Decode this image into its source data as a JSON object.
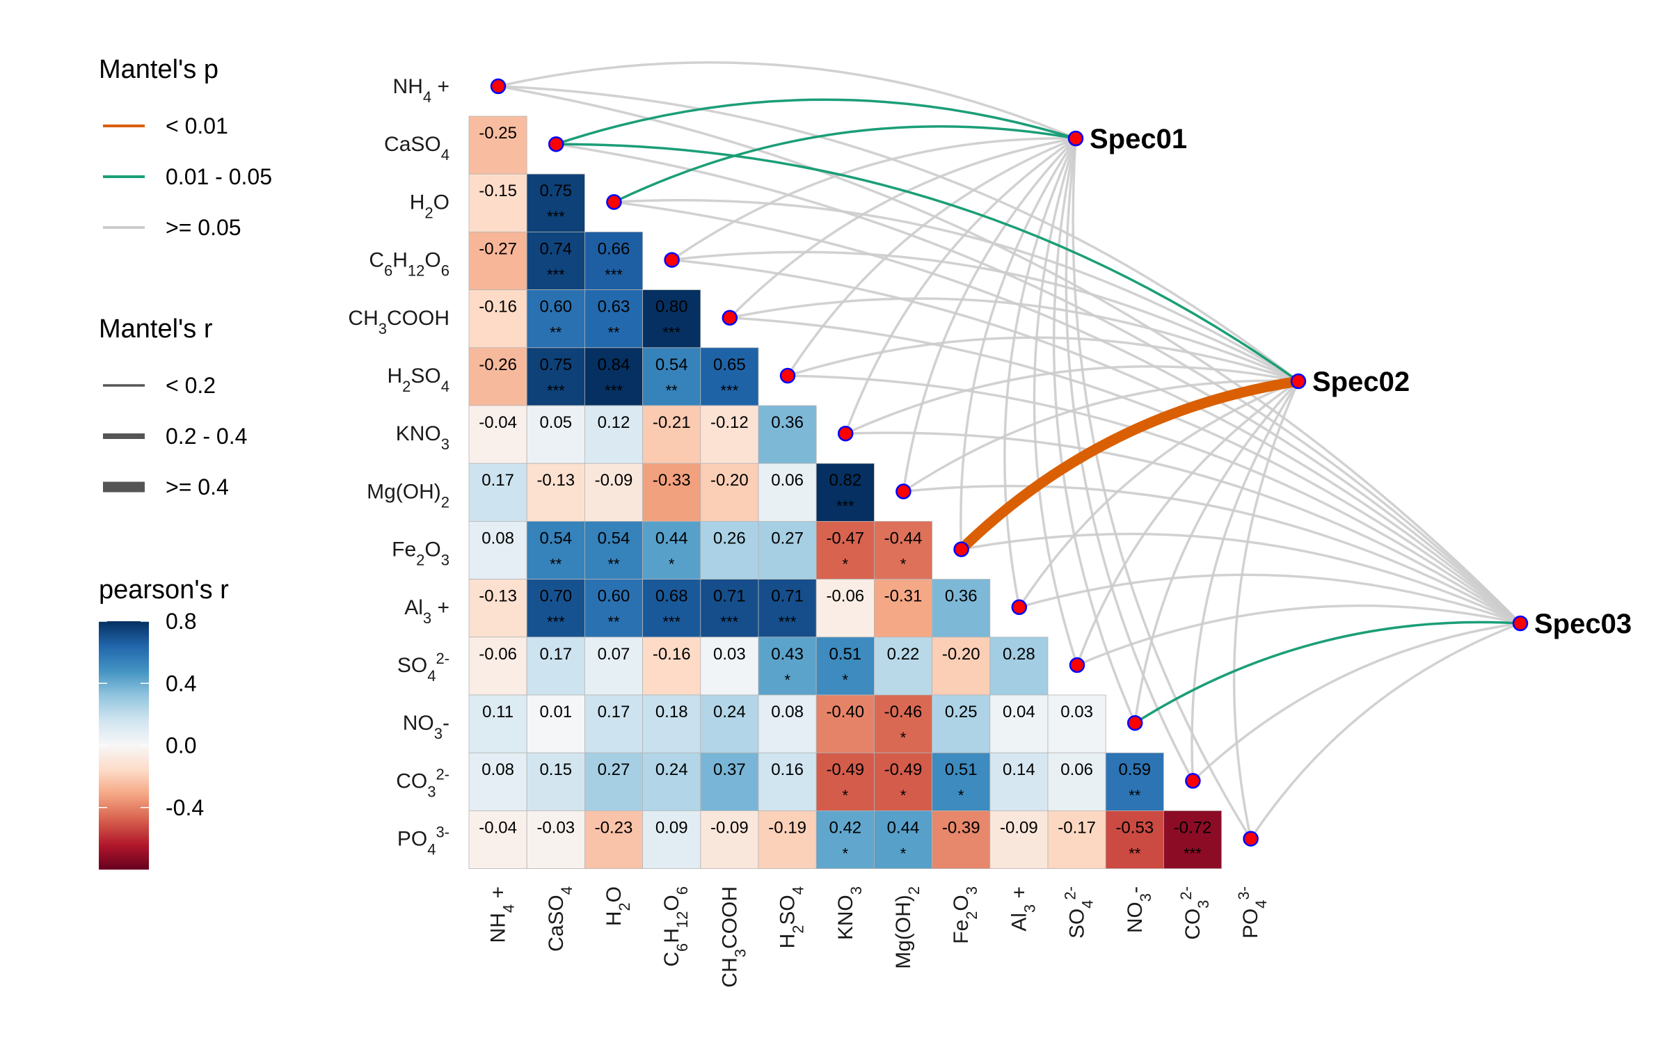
{
  "chart_data": {
    "type": "heatmap",
    "title": "",
    "variables": [
      "NH4 +",
      "CaSO4",
      "H2O",
      "C6H12O6",
      "CH3COOH",
      "H2SO4",
      "KNO3",
      "Mg(OH)2",
      "Fe2O3",
      "Al3 +",
      "SO42-",
      "NO3-",
      "CO32-",
      "PO43-"
    ],
    "variable_labels": [
      [
        {
          "t": "NH"
        },
        {
          "t": "4",
          "s": "sub"
        },
        {
          "t": " +"
        }
      ],
      [
        {
          "t": "CaSO"
        },
        {
          "t": "4",
          "s": "sub"
        }
      ],
      [
        {
          "t": "H"
        },
        {
          "t": "2",
          "s": "sub"
        },
        {
          "t": "O"
        }
      ],
      [
        {
          "t": "C"
        },
        {
          "t": "6",
          "s": "sub"
        },
        {
          "t": "H"
        },
        {
          "t": "12",
          "s": "sub"
        },
        {
          "t": "O"
        },
        {
          "t": "6",
          "s": "sub"
        }
      ],
      [
        {
          "t": "CH"
        },
        {
          "t": "3",
          "s": "sub"
        },
        {
          "t": "COOH"
        }
      ],
      [
        {
          "t": "H"
        },
        {
          "t": "2",
          "s": "sub"
        },
        {
          "t": "SO"
        },
        {
          "t": "4",
          "s": "sub"
        }
      ],
      [
        {
          "t": "KNO"
        },
        {
          "t": "3",
          "s": "sub"
        }
      ],
      [
        {
          "t": "Mg(OH)"
        },
        {
          "t": "2",
          "s": "sub"
        }
      ],
      [
        {
          "t": "Fe"
        },
        {
          "t": "2",
          "s": "sub"
        },
        {
          "t": "O"
        },
        {
          "t": "3",
          "s": "sub"
        }
      ],
      [
        {
          "t": "Al"
        },
        {
          "t": "3",
          "s": "sub"
        },
        {
          "t": " +"
        }
      ],
      [
        {
          "t": "SO"
        },
        {
          "t": "4",
          "s": "sub"
        },
        {
          "t": "2-",
          "s": "sup"
        }
      ],
      [
        {
          "t": "NO"
        },
        {
          "t": "3",
          "s": "sub"
        },
        {
          "t": "-"
        }
      ],
      [
        {
          "t": "CO"
        },
        {
          "t": "3",
          "s": "sub"
        },
        {
          "t": "2-",
          "s": "sup"
        }
      ],
      [
        {
          "t": "PO"
        },
        {
          "t": "4",
          "s": "sub"
        },
        {
          "t": "3-",
          "s": "sup"
        }
      ]
    ],
    "correlation_cells": [
      [
        1,
        0,
        "-0.25",
        ""
      ],
      [
        2,
        0,
        "-0.15",
        ""
      ],
      [
        2,
        1,
        "0.75",
        "***"
      ],
      [
        3,
        0,
        "-0.27",
        ""
      ],
      [
        3,
        1,
        "0.74",
        "***"
      ],
      [
        3,
        2,
        "0.66",
        "***"
      ],
      [
        4,
        0,
        "-0.16",
        ""
      ],
      [
        4,
        1,
        "0.60",
        "**"
      ],
      [
        4,
        2,
        "0.63",
        "**"
      ],
      [
        4,
        3,
        "0.80",
        "***"
      ],
      [
        5,
        0,
        "-0.26",
        ""
      ],
      [
        5,
        1,
        "0.75",
        "***"
      ],
      [
        5,
        2,
        "0.84",
        "***"
      ],
      [
        5,
        3,
        "0.54",
        "**"
      ],
      [
        5,
        4,
        "0.65",
        "***"
      ],
      [
        6,
        0,
        "-0.04",
        ""
      ],
      [
        6,
        1,
        "0.05",
        ""
      ],
      [
        6,
        2,
        "0.12",
        ""
      ],
      [
        6,
        3,
        "-0.21",
        ""
      ],
      [
        6,
        4,
        "-0.12",
        ""
      ],
      [
        6,
        5,
        "0.36",
        ""
      ],
      [
        7,
        0,
        "0.17",
        ""
      ],
      [
        7,
        1,
        "-0.13",
        ""
      ],
      [
        7,
        2,
        "-0.09",
        ""
      ],
      [
        7,
        3,
        "-0.33",
        ""
      ],
      [
        7,
        4,
        "-0.20",
        ""
      ],
      [
        7,
        5,
        "0.06",
        ""
      ],
      [
        7,
        6,
        "0.82",
        "***"
      ],
      [
        8,
        0,
        "0.08",
        ""
      ],
      [
        8,
        1,
        "0.54",
        "**"
      ],
      [
        8,
        2,
        "0.54",
        "**"
      ],
      [
        8,
        3,
        "0.44",
        "*"
      ],
      [
        8,
        4,
        "0.26",
        ""
      ],
      [
        8,
        5,
        "0.27",
        ""
      ],
      [
        8,
        6,
        "-0.47",
        "*"
      ],
      [
        8,
        7,
        "-0.44",
        "*"
      ],
      [
        9,
        0,
        "-0.13",
        ""
      ],
      [
        9,
        1,
        "0.70",
        "***"
      ],
      [
        9,
        2,
        "0.60",
        "**"
      ],
      [
        9,
        3,
        "0.68",
        "***"
      ],
      [
        9,
        4,
        "0.71",
        "***"
      ],
      [
        9,
        5,
        "0.71",
        "***"
      ],
      [
        9,
        6,
        "-0.06",
        ""
      ],
      [
        9,
        7,
        "-0.31",
        ""
      ],
      [
        9,
        8,
        "0.36",
        ""
      ],
      [
        10,
        0,
        "-0.06",
        ""
      ],
      [
        10,
        1,
        "0.17",
        ""
      ],
      [
        10,
        2,
        "0.07",
        ""
      ],
      [
        10,
        3,
        "-0.16",
        ""
      ],
      [
        10,
        4,
        "0.03",
        ""
      ],
      [
        10,
        5,
        "0.43",
        "*"
      ],
      [
        10,
        6,
        "0.51",
        "*"
      ],
      [
        10,
        7,
        "0.22",
        ""
      ],
      [
        10,
        8,
        "-0.20",
        ""
      ],
      [
        10,
        9,
        "0.28",
        ""
      ],
      [
        11,
        0,
        "0.11",
        ""
      ],
      [
        11,
        1,
        "0.01",
        ""
      ],
      [
        11,
        2,
        "0.17",
        ""
      ],
      [
        11,
        3,
        "0.18",
        ""
      ],
      [
        11,
        4,
        "0.24",
        ""
      ],
      [
        11,
        5,
        "0.08",
        ""
      ],
      [
        11,
        6,
        "-0.40",
        ""
      ],
      [
        11,
        7,
        "-0.46",
        "*"
      ],
      [
        11,
        8,
        "0.25",
        ""
      ],
      [
        11,
        9,
        "0.04",
        ""
      ],
      [
        11,
        10,
        "0.03",
        ""
      ],
      [
        12,
        0,
        "0.08",
        ""
      ],
      [
        12,
        1,
        "0.15",
        ""
      ],
      [
        12,
        2,
        "0.27",
        ""
      ],
      [
        12,
        3,
        "0.24",
        ""
      ],
      [
        12,
        4,
        "0.37",
        ""
      ],
      [
        12,
        5,
        "0.16",
        ""
      ],
      [
        12,
        6,
        "-0.49",
        "*"
      ],
      [
        12,
        7,
        "-0.49",
        "*"
      ],
      [
        12,
        8,
        "0.51",
        "*"
      ],
      [
        12,
        9,
        "0.14",
        ""
      ],
      [
        12,
        10,
        "0.06",
        ""
      ],
      [
        12,
        11,
        "0.59",
        "**"
      ],
      [
        13,
        0,
        "-0.04",
        ""
      ],
      [
        13,
        1,
        "-0.03",
        ""
      ],
      [
        13,
        2,
        "-0.23",
        ""
      ],
      [
        13,
        3,
        "0.09",
        ""
      ],
      [
        13,
        4,
        "-0.09",
        ""
      ],
      [
        13,
        5,
        "-0.19",
        ""
      ],
      [
        13,
        6,
        "0.42",
        "*"
      ],
      [
        13,
        7,
        "0.44",
        "*"
      ],
      [
        13,
        8,
        "-0.39",
        ""
      ],
      [
        13,
        9,
        "-0.09",
        ""
      ],
      [
        13,
        10,
        "-0.17",
        ""
      ],
      [
        13,
        11,
        "-0.53",
        "**"
      ],
      [
        13,
        12,
        "-0.72",
        "***"
      ]
    ],
    "spec_nodes": [
      "Spec01",
      "Spec02",
      "Spec03"
    ],
    "links": [
      {
        "spec": 0,
        "var": 0,
        "p": "ge0.05",
        "r": "lt0.2"
      },
      {
        "spec": 0,
        "var": 1,
        "p": "0.01-0.05",
        "r": "lt0.2"
      },
      {
        "spec": 0,
        "var": 2,
        "p": "0.01-0.05",
        "r": "lt0.2"
      },
      {
        "spec": 0,
        "var": 3,
        "p": "ge0.05",
        "r": "lt0.2"
      },
      {
        "spec": 0,
        "var": 4,
        "p": "ge0.05",
        "r": "lt0.2"
      },
      {
        "spec": 0,
        "var": 5,
        "p": "ge0.05",
        "r": "lt0.2"
      },
      {
        "spec": 0,
        "var": 6,
        "p": "ge0.05",
        "r": "lt0.2"
      },
      {
        "spec": 0,
        "var": 7,
        "p": "ge0.05",
        "r": "lt0.2"
      },
      {
        "spec": 0,
        "var": 8,
        "p": "ge0.05",
        "r": "lt0.2"
      },
      {
        "spec": 0,
        "var": 9,
        "p": "ge0.05",
        "r": "lt0.2"
      },
      {
        "spec": 0,
        "var": 10,
        "p": "ge0.05",
        "r": "lt0.2"
      },
      {
        "spec": 0,
        "var": 11,
        "p": "ge0.05",
        "r": "lt0.2"
      },
      {
        "spec": 0,
        "var": 12,
        "p": "ge0.05",
        "r": "lt0.2"
      },
      {
        "spec": 0,
        "var": 13,
        "p": "ge0.05",
        "r": "lt0.2"
      },
      {
        "spec": 1,
        "var": 0,
        "p": "ge0.05",
        "r": "lt0.2"
      },
      {
        "spec": 1,
        "var": 1,
        "p": "0.01-0.05",
        "r": "lt0.2"
      },
      {
        "spec": 1,
        "var": 2,
        "p": "ge0.05",
        "r": "lt0.2"
      },
      {
        "spec": 1,
        "var": 3,
        "p": "ge0.05",
        "r": "lt0.2"
      },
      {
        "spec": 1,
        "var": 4,
        "p": "ge0.05",
        "r": "lt0.2"
      },
      {
        "spec": 1,
        "var": 5,
        "p": "ge0.05",
        "r": "lt0.2"
      },
      {
        "spec": 1,
        "var": 6,
        "p": "ge0.05",
        "r": "lt0.2"
      },
      {
        "spec": 1,
        "var": 7,
        "p": "ge0.05",
        "r": "lt0.2"
      },
      {
        "spec": 1,
        "var": 8,
        "p": "lt0.01",
        "r": "ge0.4"
      },
      {
        "spec": 1,
        "var": 9,
        "p": "ge0.05",
        "r": "lt0.2"
      },
      {
        "spec": 1,
        "var": 10,
        "p": "ge0.05",
        "r": "lt0.2"
      },
      {
        "spec": 1,
        "var": 11,
        "p": "ge0.05",
        "r": "lt0.2"
      },
      {
        "spec": 1,
        "var": 12,
        "p": "ge0.05",
        "r": "lt0.2"
      },
      {
        "spec": 1,
        "var": 13,
        "p": "ge0.05",
        "r": "lt0.2"
      },
      {
        "spec": 2,
        "var": 0,
        "p": "ge0.05",
        "r": "lt0.2"
      },
      {
        "spec": 2,
        "var": 1,
        "p": "ge0.05",
        "r": "lt0.2"
      },
      {
        "spec": 2,
        "var": 2,
        "p": "ge0.05",
        "r": "lt0.2"
      },
      {
        "spec": 2,
        "var": 3,
        "p": "ge0.05",
        "r": "lt0.2"
      },
      {
        "spec": 2,
        "var": 4,
        "p": "ge0.05",
        "r": "lt0.2"
      },
      {
        "spec": 2,
        "var": 5,
        "p": "ge0.05",
        "r": "lt0.2"
      },
      {
        "spec": 2,
        "var": 6,
        "p": "ge0.05",
        "r": "lt0.2"
      },
      {
        "spec": 2,
        "var": 7,
        "p": "ge0.05",
        "r": "lt0.2"
      },
      {
        "spec": 2,
        "var": 8,
        "p": "ge0.05",
        "r": "lt0.2"
      },
      {
        "spec": 2,
        "var": 9,
        "p": "ge0.05",
        "r": "lt0.2"
      },
      {
        "spec": 2,
        "var": 10,
        "p": "ge0.05",
        "r": "lt0.2"
      },
      {
        "spec": 2,
        "var": 11,
        "p": "0.01-0.05",
        "r": "lt0.2"
      },
      {
        "spec": 2,
        "var": 12,
        "p": "ge0.05",
        "r": "lt0.2"
      },
      {
        "spec": 2,
        "var": 13,
        "p": "ge0.05",
        "r": "lt0.2"
      }
    ],
    "legend_mantel_p": {
      "title": "Mantel's p",
      "items": [
        {
          "key": "lt0.01",
          "label": "< 0.01",
          "color": "#D95F02"
        },
        {
          "key": "0.01-0.05",
          "label": "0.01 - 0.05",
          "color": "#1B9E77"
        },
        {
          "key": "ge0.05",
          "label": ">= 0.05",
          "color": "#CCCCCC"
        }
      ]
    },
    "legend_mantel_r": {
      "title": "Mantel's r",
      "items": [
        {
          "key": "lt0.2",
          "label": "< 0.2"
        },
        {
          "key": "0.2-0.4",
          "label": "0.2 - 0.4"
        },
        {
          "key": "ge0.4",
          "label": ">= 0.4"
        }
      ]
    },
    "legend_pearson": {
      "title": "pearson's r",
      "ticks": [
        "0.8",
        "0.4",
        "0.0",
        "-0.4"
      ],
      "range": [
        -0.8,
        0.8
      ]
    },
    "color_scale": [
      "#67001F",
      "#B2182B",
      "#D6604D",
      "#F4A582",
      "#FDDBC7",
      "#F7F7F7",
      "#D1E5F0",
      "#92C5DE",
      "#4393C3",
      "#2166AC",
      "#053061"
    ],
    "node_fill": "#FF0000",
    "node_stroke": "#0000FF"
  }
}
